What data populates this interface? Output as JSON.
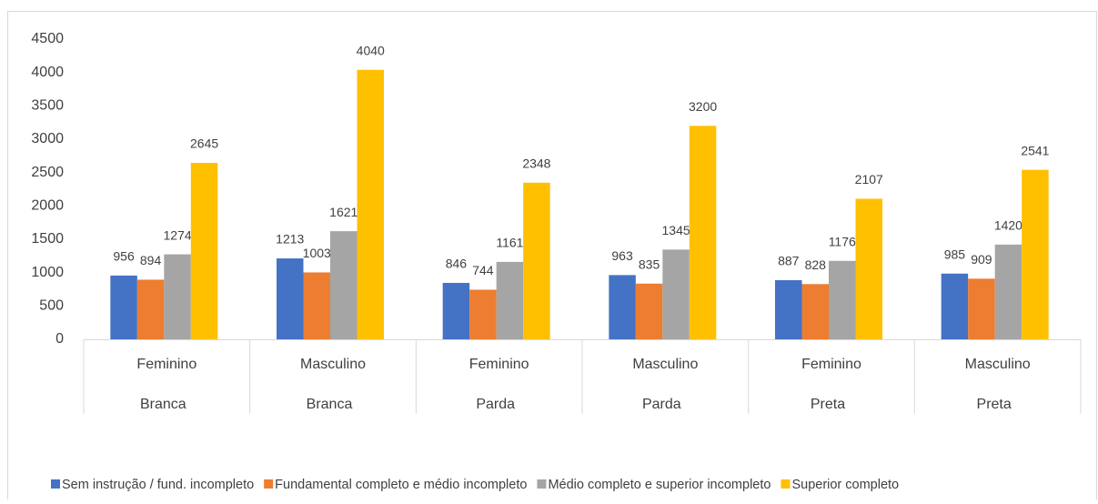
{
  "chart_data": {
    "type": "bar",
    "categories": [
      "Feminino",
      "Masculino",
      "Feminino",
      "Masculino",
      "Feminino",
      "Masculino"
    ],
    "category_groups": [
      "Branca",
      "Branca",
      "Parda",
      "Parda",
      "Preta",
      "Preta"
    ],
    "series": [
      {
        "name": "Sem instrução / fund. incompleto",
        "color": "#4472c4",
        "values": [
          956,
          1213,
          846,
          963,
          887,
          985
        ]
      },
      {
        "name": "Fundamental completo e médio incompleto",
        "color": "#ed7d31",
        "values": [
          894,
          1003,
          744,
          835,
          828,
          909
        ]
      },
      {
        "name": "Médio completo e superior incompleto",
        "color": "#a5a5a5",
        "values": [
          1274,
          1621,
          1161,
          1345,
          1176,
          1420
        ]
      },
      {
        "name": "Superior completo",
        "color": "#ffc000",
        "values": [
          2645,
          4040,
          2348,
          3200,
          2107,
          2541
        ]
      }
    ],
    "ylim": [
      0,
      4500
    ],
    "yticks": [
      0,
      500,
      1000,
      1500,
      2000,
      2500,
      3000,
      3500,
      4000,
      4500
    ],
    "grid": false,
    "legend": "bottom"
  }
}
